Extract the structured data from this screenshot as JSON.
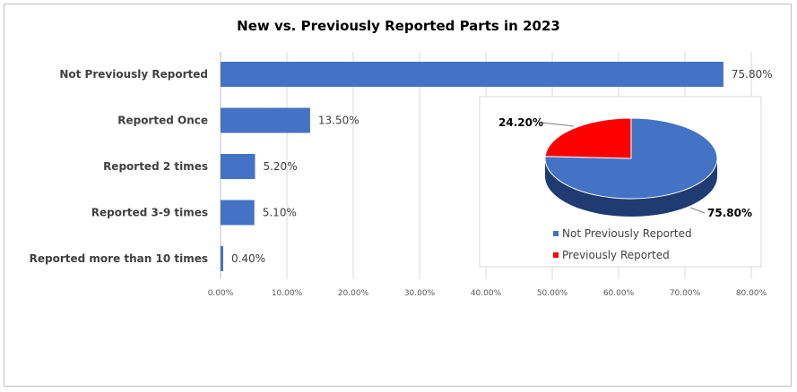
{
  "colors": {
    "bar": "#4472c4",
    "pie_not_previously": "#4472c4",
    "pie_not_previously_side": "#1f3b72",
    "pie_previously": "#ff0000",
    "pie_previously_side": "#a00000",
    "grid": "#d9d9d9",
    "axis": "#bfbfbf"
  },
  "chart_data": [
    {
      "type": "bar",
      "orientation": "horizontal",
      "title": "New vs. Previously Reported Parts in 2023",
      "categories": [
        "Not Previously Reported",
        "Reported Once",
        "Reported 2 times",
        "Reported 3-9 times",
        "Reported more than 10 times"
      ],
      "values": [
        75.8,
        13.5,
        5.2,
        5.1,
        0.4
      ],
      "data_labels": [
        "75.80%",
        "13.50%",
        "5.20%",
        "5.10%",
        "0.40%"
      ],
      "xlim": [
        0,
        80
      ],
      "ticks": [
        0,
        10,
        20,
        30,
        40,
        50,
        60,
        70,
        80
      ],
      "tick_labels": [
        "0.00%",
        "10.00%",
        "20.00%",
        "30.00%",
        "40.00%",
        "50.00%",
        "60.00%",
        "70.00%",
        "80.00%"
      ],
      "grid": true
    },
    {
      "type": "pie",
      "style": "3d",
      "categories": [
        "Not Previously Reported",
        "Previously Reported"
      ],
      "values": [
        75.8,
        24.2
      ],
      "data_labels": [
        "75.80%",
        "24.20%"
      ],
      "legend": "bottom"
    }
  ]
}
